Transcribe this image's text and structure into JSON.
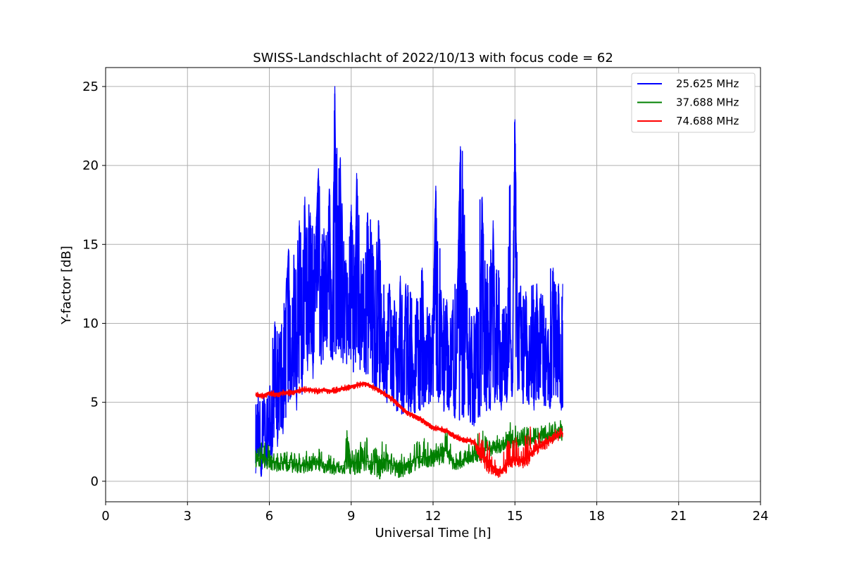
{
  "chart_data": {
    "type": "line",
    "title": "SWISS-Landschlacht of 2022/10/13 with focus code = 62",
    "xlabel": "Universal Time [h]",
    "ylabel": "Y-factor [dB]",
    "xlim": [
      0,
      24
    ],
    "ylim": [
      -1.3,
      26.2
    ],
    "xticks": [
      0,
      3,
      6,
      9,
      12,
      15,
      18,
      21,
      24
    ],
    "yticks": [
      0,
      5,
      10,
      15,
      20,
      25
    ],
    "grid": true,
    "legend_position": "top-right",
    "series": [
      {
        "name": "25.625 MHz",
        "color": "#0000ff",
        "x": [
          5.5,
          5.6,
          5.7,
          5.8,
          5.9,
          6.0,
          6.1,
          6.2,
          6.3,
          6.4,
          6.5,
          6.6,
          6.7,
          6.8,
          6.9,
          7.0,
          7.1,
          7.2,
          7.3,
          7.4,
          7.5,
          7.6,
          7.7,
          7.8,
          7.9,
          8.0,
          8.1,
          8.2,
          8.3,
          8.4,
          8.5,
          8.6,
          8.7,
          8.8,
          8.9,
          9.0,
          9.1,
          9.2,
          9.3,
          9.4,
          9.5,
          9.6,
          9.7,
          9.8,
          9.9,
          10.0,
          10.1,
          10.2,
          10.3,
          10.4,
          10.5,
          10.6,
          10.7,
          10.8,
          10.9,
          11.0,
          11.1,
          11.2,
          11.3,
          11.4,
          11.5,
          11.6,
          11.7,
          11.8,
          11.9,
          12.0,
          12.1,
          12.2,
          12.3,
          12.4,
          12.5,
          12.6,
          12.7,
          12.8,
          12.9,
          13.0,
          13.1,
          13.2,
          13.3,
          13.4,
          13.5,
          13.6,
          13.7,
          13.8,
          13.9,
          14.0,
          14.1,
          14.2,
          14.3,
          14.4,
          14.5,
          14.6,
          14.7,
          14.8,
          14.9,
          15.0,
          15.1,
          15.2,
          15.3,
          15.4,
          15.5,
          15.6,
          15.7,
          15.8,
          15.9,
          16.0,
          16.1,
          16.2,
          16.3,
          16.4,
          16.5,
          16.6,
          16.7,
          16.75
        ],
        "y": [
          0.5,
          4.5,
          0.3,
          5.5,
          1.0,
          3.8,
          1.5,
          10.1,
          2.2,
          8.5,
          3.0,
          10.5,
          14.7,
          6.0,
          12.8,
          4.5,
          16.5,
          5.5,
          18.0,
          7.0,
          17.0,
          6.5,
          15.5,
          19.8,
          7.5,
          16.0,
          10.5,
          18.5,
          8.0,
          25.0,
          9.0,
          20.5,
          7.5,
          14.0,
          8.5,
          17.5,
          8.0,
          19.5,
          9.0,
          13.0,
          7.5,
          17.0,
          9.5,
          13.5,
          6.0,
          16.5,
          7.5,
          10.5,
          5.5,
          12.5,
          6.5,
          9.0,
          4.5,
          13.0,
          5.5,
          12.5,
          4.5,
          10.5,
          5.0,
          11.5,
          4.5,
          13.5,
          6.5,
          10.0,
          5.5,
          11.0,
          18.7,
          5.0,
          12.0,
          4.5,
          11.5,
          5.5,
          10.5,
          4.0,
          12.5,
          21.2,
          5.0,
          12.5,
          4.5,
          10.0,
          3.5,
          11.0,
          5.0,
          18.0,
          6.5,
          9.0,
          4.5,
          16.5,
          5.5,
          9.5,
          4.5,
          10.5,
          5.0,
          11.0,
          5.5,
          22.9,
          6.5,
          11.5,
          5.0,
          12.0,
          5.5,
          10.0,
          4.5,
          12.5,
          6.0,
          11.0,
          5.0,
          9.5,
          5.5,
          13.5,
          6.0,
          12.5,
          4.5,
          12.5
        ],
        "envelope_low": [
          0.3,
          0.5,
          0.3,
          0.8,
          1.0,
          1.5,
          1.8,
          2.2,
          2.5,
          3.0,
          3.5,
          4.0,
          4.5,
          5.0,
          5.5,
          5.8,
          6.2,
          6.5,
          6.8,
          7.0,
          7.2,
          7.3,
          7.3,
          7.4,
          7.4,
          7.5,
          7.5,
          7.5,
          7.6,
          7.6,
          7.6,
          7.5,
          7.4,
          7.3,
          7.2,
          7.0,
          6.9,
          6.8,
          6.7,
          6.6,
          6.5,
          6.4,
          6.2,
          6.0,
          5.8,
          5.6,
          5.4,
          5.2,
          5.0,
          4.8,
          4.6,
          4.5,
          4.4,
          4.3,
          4.2,
          4.2,
          4.2,
          4.3,
          4.3,
          4.4,
          4.4,
          4.5,
          4.5,
          4.6,
          4.6,
          4.7,
          4.7,
          4.6,
          4.5,
          4.4,
          4.3,
          4.2,
          4.1,
          4.0,
          3.9,
          3.8,
          3.8,
          3.7,
          3.6,
          3.6,
          3.5,
          3.6,
          3.7,
          3.8,
          3.9,
          4.0,
          4.2,
          4.4,
          4.6,
          4.8,
          4.8,
          4.9,
          5.0,
          5.0,
          5.1,
          5.1,
          5.0,
          5.0,
          4.9,
          4.9,
          4.8,
          4.8,
          4.8,
          4.7,
          4.7,
          4.7,
          4.6,
          4.6,
          4.6,
          4.5,
          4.5,
          4.5,
          4.4,
          4.4
        ],
        "envelope_high": [
          4.8,
          5.8,
          6.0,
          5.5,
          5.0,
          6.5,
          9.0,
          10.1,
          9.5,
          9.8,
          11.5,
          12.5,
          14.7,
          14.0,
          14.5,
          15.0,
          16.5,
          16.0,
          18.0,
          18.0,
          17.0,
          16.5,
          15.5,
          19.8,
          17.0,
          16.0,
          16.0,
          18.5,
          17.5,
          25.0,
          20.5,
          20.5,
          16.5,
          14.0,
          16.0,
          17.5,
          17.5,
          19.5,
          17.0,
          13.0,
          17.0,
          17.0,
          17.0,
          15.0,
          16.5,
          16.5,
          14.5,
          12.5,
          12.5,
          12.5,
          11.5,
          12.0,
          13.0,
          13.0,
          12.5,
          12.5,
          12.5,
          12.0,
          11.0,
          11.5,
          13.5,
          13.5,
          12.0,
          11.0,
          11.0,
          11.0,
          18.7,
          18.7,
          12.0,
          12.0,
          11.5,
          11.5,
          11.0,
          12.5,
          12.5,
          21.2,
          21.2,
          12.5,
          12.5,
          11.0,
          11.0,
          11.0,
          18.0,
          18.0,
          14.0,
          14.0,
          16.5,
          16.5,
          14.5,
          14.5,
          11.0,
          11.0,
          11.5,
          22.9,
          22.9,
          22.9,
          12.5,
          12.5,
          12.0,
          12.0,
          12.0,
          12.5,
          12.5,
          12.5,
          12.0,
          12.0,
          11.5,
          11.5,
          13.5,
          13.5,
          13.5,
          12.5,
          12.5,
          12.5
        ]
      },
      {
        "name": "37.688 MHz",
        "color": "#008000",
        "x": [
          5.5,
          5.75,
          6.0,
          6.25,
          6.5,
          6.75,
          7.0,
          7.25,
          7.5,
          7.75,
          8.0,
          8.25,
          8.5,
          8.75,
          8.9,
          9.0,
          9.25,
          9.5,
          9.75,
          10.0,
          10.25,
          10.5,
          10.75,
          11.0,
          11.25,
          11.5,
          11.75,
          12.0,
          12.25,
          12.5,
          12.75,
          13.0,
          13.25,
          13.5,
          13.75,
          14.0,
          14.25,
          14.5,
          14.75,
          15.0,
          15.25,
          15.5,
          15.75,
          16.0,
          16.25,
          16.5,
          16.75
        ],
        "y": [
          1.4,
          1.5,
          1.3,
          1.2,
          1.1,
          1.2,
          1.1,
          1.0,
          1.1,
          1.3,
          1.1,
          1.0,
          0.9,
          1.0,
          2.5,
          1.1,
          1.2,
          1.3,
          1.2,
          1.3,
          1.4,
          1.0,
          0.9,
          1.1,
          1.3,
          1.6,
          1.5,
          1.7,
          1.7,
          2.0,
          1.1,
          1.2,
          1.5,
          1.6,
          1.8,
          2.0,
          2.2,
          2.3,
          2.5,
          2.6,
          2.6,
          2.7,
          2.8,
          2.9,
          3.0,
          3.1,
          3.2
        ],
        "envelope_low": [
          0.7,
          0.9,
          0.7,
          0.6,
          0.6,
          0.6,
          0.5,
          0.5,
          0.5,
          0.6,
          0.5,
          0.4,
          0.3,
          0.4,
          0.6,
          0.4,
          0.4,
          0.5,
          0.4,
          0.0,
          0.6,
          0.3,
          0.2,
          0.3,
          0.6,
          0.8,
          0.8,
          0.9,
          1.0,
          1.2,
          0.7,
          0.8,
          1.0,
          1.2,
          1.3,
          1.5,
          1.7,
          1.8,
          2.0,
          2.1,
          2.2,
          2.2,
          2.3,
          2.4,
          2.5,
          2.5,
          2.6
        ],
        "envelope_high": [
          2.0,
          2.8,
          2.2,
          1.8,
          1.8,
          1.9,
          1.7,
          2.0,
          1.8,
          2.2,
          1.8,
          1.7,
          1.6,
          1.8,
          4.5,
          1.9,
          2.2,
          3.3,
          2.0,
          2.6,
          2.4,
          1.8,
          1.7,
          1.8,
          2.3,
          3.7,
          2.6,
          2.5,
          2.4,
          3.4,
          1.8,
          2.0,
          2.3,
          2.4,
          3.7,
          2.6,
          2.8,
          3.2,
          3.5,
          4.2,
          3.5,
          3.4,
          3.5,
          3.6,
          3.7,
          3.8,
          3.9
        ]
      },
      {
        "name": "74.688 MHz",
        "color": "#ff0000",
        "x": [
          5.5,
          5.75,
          6.0,
          6.25,
          6.5,
          6.75,
          7.0,
          7.25,
          7.5,
          7.75,
          8.0,
          8.25,
          8.5,
          8.75,
          9.0,
          9.25,
          9.5,
          9.75,
          10.0,
          10.25,
          10.5,
          10.75,
          11.0,
          11.25,
          11.5,
          11.75,
          12.0,
          12.25,
          12.5,
          12.75,
          13.0,
          13.25,
          13.5,
          13.75,
          14.0,
          14.25,
          14.5,
          14.75,
          15.0,
          15.25,
          15.5,
          15.75,
          16.0,
          16.25,
          16.5,
          16.75
        ],
        "y": [
          5.5,
          5.4,
          5.6,
          5.5,
          5.6,
          5.6,
          5.7,
          5.8,
          5.8,
          5.7,
          5.8,
          5.7,
          5.8,
          5.9,
          6.0,
          6.1,
          6.2,
          6.0,
          5.8,
          5.5,
          5.2,
          4.8,
          4.4,
          4.2,
          4.0,
          3.7,
          3.4,
          3.3,
          3.2,
          2.9,
          2.7,
          2.6,
          2.5,
          1.8,
          1.2,
          0.8,
          0.6,
          1.2,
          1.4,
          1.3,
          1.6,
          2.0,
          2.3,
          2.6,
          2.9,
          3.1
        ],
        "envelope_low": [
          5.3,
          5.2,
          5.4,
          5.3,
          5.4,
          5.4,
          5.5,
          5.6,
          5.6,
          5.5,
          5.6,
          5.5,
          5.6,
          5.7,
          5.8,
          5.9,
          6.0,
          5.8,
          5.6,
          5.3,
          5.0,
          4.6,
          4.2,
          4.0,
          3.8,
          3.5,
          3.2,
          3.1,
          3.0,
          2.7,
          2.5,
          2.4,
          2.2,
          1.2,
          0.5,
          0.3,
          0.2,
          0.6,
          0.8,
          0.8,
          1.0,
          1.5,
          1.8,
          2.2,
          2.5,
          2.7
        ],
        "envelope_high": [
          5.7,
          5.6,
          5.8,
          5.7,
          5.8,
          5.8,
          6.0,
          6.0,
          6.0,
          5.9,
          6.0,
          5.9,
          6.0,
          6.1,
          6.2,
          6.3,
          6.3,
          6.2,
          6.0,
          5.7,
          5.4,
          5.0,
          4.6,
          4.4,
          4.2,
          3.9,
          3.6,
          3.5,
          3.4,
          3.1,
          2.9,
          2.8,
          2.7,
          3.2,
          2.5,
          1.6,
          1.5,
          2.8,
          3.5,
          2.8,
          4.0,
          3.6,
          2.7,
          3.0,
          3.3,
          3.4
        ]
      }
    ]
  }
}
